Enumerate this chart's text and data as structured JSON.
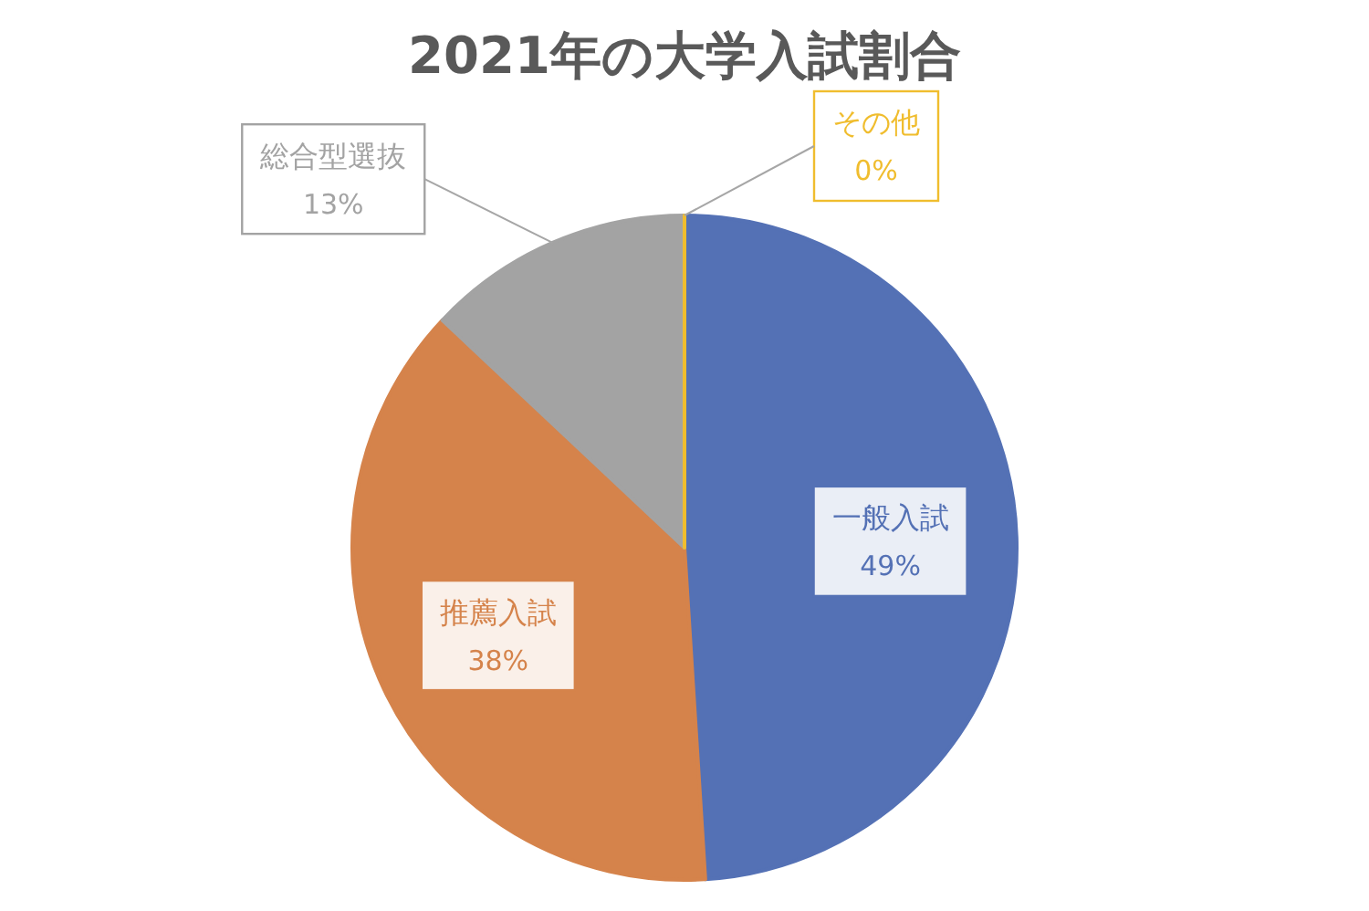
{
  "chart_data": {
    "type": "pie",
    "title": "2021年の大学入試割合",
    "categories": [
      "一般入試",
      "推薦入試",
      "総合型選抜",
      "その他"
    ],
    "values": [
      49,
      38,
      13,
      0
    ],
    "value_labels": [
      "49%",
      "38%",
      "13%",
      "0%"
    ],
    "colors": [
      "#5471b5",
      "#d5834b",
      "#a3a3a3",
      "#f0bd2e"
    ]
  }
}
